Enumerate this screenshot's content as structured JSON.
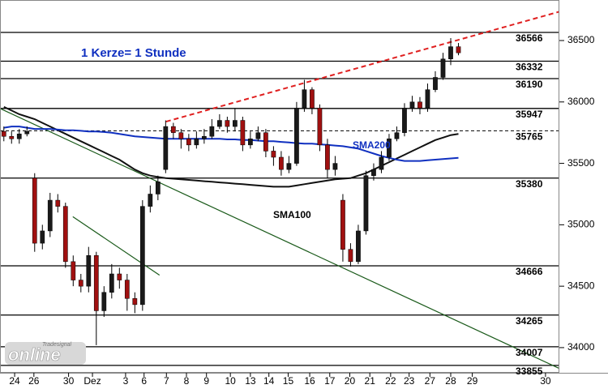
{
  "chart_data": {
    "type": "candlestick",
    "annotations": {
      "candle_note": "1 Kerze= 1 Stunde",
      "sma200_label": "SMA200",
      "sma100_label": "SMA100"
    },
    "logo": {
      "small": "Tradesignal",
      "main": "online"
    },
    "ylim": [
      33795,
      36830
    ],
    "yticks": [
      34000,
      34500,
      35000,
      35500,
      36000,
      36500
    ],
    "xlim": [
      -0.5,
      72.1
    ],
    "xticks": [
      {
        "value": 1.4,
        "label": "24"
      },
      {
        "value": 3.9,
        "label": "26"
      },
      {
        "value": 8.4,
        "label": "30"
      },
      {
        "value": 11.5,
        "label": "Dez"
      },
      {
        "value": 15.8,
        "label": "3"
      },
      {
        "value": 18.2,
        "label": "6"
      },
      {
        "value": 21.1,
        "label": "7"
      },
      {
        "value": 23.7,
        "label": "8"
      },
      {
        "value": 26.3,
        "label": "9"
      },
      {
        "value": 29.4,
        "label": "10"
      },
      {
        "value": 32,
        "label": "13"
      },
      {
        "value": 34.4,
        "label": "14"
      },
      {
        "value": 36.9,
        "label": "15"
      },
      {
        "value": 39.7,
        "label": "16"
      },
      {
        "value": 42.3,
        "label": "17"
      },
      {
        "value": 44.9,
        "label": "20"
      },
      {
        "value": 47.5,
        "label": "21"
      },
      {
        "value": 50.2,
        "label": "22"
      },
      {
        "value": 52.6,
        "label": "23"
      },
      {
        "value": 55.3,
        "label": "27"
      },
      {
        "value": 58,
        "label": "28"
      },
      {
        "value": 60.8,
        "label": "29"
      },
      {
        "value": 70.3,
        "label": "30"
      }
    ],
    "levels": [
      {
        "value": 36566,
        "label": "36566"
      },
      {
        "value": 36332,
        "label": "36332"
      },
      {
        "value": 36190,
        "label": "36190"
      },
      {
        "value": 35947,
        "label": "35947"
      },
      {
        "value": 35765,
        "label": "35765",
        "dashed": true
      },
      {
        "value": 35380,
        "label": "35380"
      },
      {
        "value": 34666,
        "label": "34666"
      },
      {
        "value": 34265,
        "label": "34265"
      },
      {
        "value": 34007,
        "label": "34007"
      },
      {
        "value": 33855,
        "label": "33855"
      }
    ],
    "candles": {
      "up_color": "#1a1a1a",
      "down_color": "#a01010",
      "open": [
        35760,
        35720,
        35700,
        35740,
        35380,
        34850,
        34950,
        35200,
        35150,
        34700,
        34550,
        34500,
        34750,
        34300,
        34450,
        34600,
        34550,
        34400,
        34350,
        35150,
        35250,
        35450,
        35800,
        35750,
        35700,
        35650,
        35700,
        35720,
        35800,
        35850,
        35800,
        35850,
        35650,
        35700,
        35750,
        35600,
        35550,
        35450,
        35500,
        35950,
        36100,
        35950,
        35650,
        35450,
        35200,
        34800,
        34700,
        34950,
        35400,
        35450,
        35550,
        35700,
        35750,
        35950,
        36000,
        35950,
        36100,
        36200,
        36350,
        36450
      ],
      "high": [
        35800,
        35760,
        35780,
        35800,
        35420,
        35000,
        35260,
        35250,
        35180,
        34750,
        34600,
        34820,
        34780,
        34500,
        34680,
        34650,
        34600,
        34450,
        35200,
        35320,
        35400,
        35850,
        35830,
        35780,
        35740,
        35760,
        35780,
        35860,
        35900,
        35880,
        35950,
        35880,
        35760,
        35800,
        35780,
        35640,
        35600,
        35560,
        36000,
        36180,
        36120,
        35980,
        35700,
        35560,
        35250,
        34850,
        35000,
        35440,
        35500,
        35600,
        35740,
        35800,
        35990,
        36050,
        36040,
        36150,
        36250,
        36400,
        36520,
        36480
      ],
      "low": [
        35680,
        35660,
        35660,
        35720,
        34780,
        34800,
        34900,
        35100,
        34650,
        34500,
        34450,
        34450,
        34020,
        34250,
        34400,
        34480,
        34300,
        34280,
        34300,
        35100,
        35200,
        35420,
        35700,
        35620,
        35600,
        35620,
        35660,
        35700,
        35780,
        35750,
        35760,
        35600,
        35620,
        35680,
        35550,
        35480,
        35400,
        35420,
        35480,
        35920,
        35900,
        35600,
        35380,
        35400,
        34700,
        34660,
        34680,
        34920,
        35360,
        35420,
        35520,
        35680,
        35720,
        35920,
        35900,
        35920,
        36080,
        36180,
        36300,
        36380
      ],
      "close": [
        35720,
        35700,
        35740,
        35760,
        34850,
        34950,
        35200,
        35150,
        34700,
        34550,
        34500,
        34750,
        34300,
        34450,
        34600,
        34550,
        34400,
        34350,
        35150,
        35250,
        35350,
        35800,
        35750,
        35700,
        35650,
        35700,
        35720,
        35800,
        35850,
        35800,
        35850,
        35650,
        35700,
        35750,
        35600,
        35550,
        35450,
        35500,
        35950,
        36100,
        35950,
        35650,
        35450,
        35500,
        34800,
        34700,
        34950,
        35400,
        35450,
        35550,
        35700,
        35750,
        35950,
        36000,
        35950,
        36100,
        36200,
        36350,
        36450,
        36400
      ]
    },
    "series": [
      {
        "name": "SMA100",
        "color": "#111111",
        "values": [
          35960,
          35930,
          35900,
          35880,
          35860,
          35830,
          35800,
          35770,
          35740,
          35710,
          35680,
          35650,
          35620,
          35590,
          35560,
          35530,
          35490,
          35450,
          35420,
          35400,
          35390,
          35380,
          35375,
          35370,
          35365,
          35360,
          35355,
          35350,
          35345,
          35340,
          35335,
          35330,
          35325,
          35320,
          35315,
          35310,
          35310,
          35310,
          35320,
          35330,
          35340,
          35350,
          35360,
          35370,
          35375,
          35380,
          35400,
          35420,
          35450,
          35480,
          35510,
          35540,
          35570,
          35600,
          35630,
          35660,
          35690,
          35710,
          35730,
          35740
        ]
      },
      {
        "name": "SMA200",
        "color": "#1030c0",
        "values": [
          35790,
          35800,
          35800,
          35790,
          35780,
          35780,
          35780,
          35775,
          35770,
          35770,
          35765,
          35760,
          35760,
          35755,
          35750,
          35740,
          35730,
          35720,
          35715,
          35710,
          35705,
          35700,
          35700,
          35700,
          35700,
          35700,
          35700,
          35700,
          35700,
          35695,
          35695,
          35690,
          35690,
          35685,
          35680,
          35680,
          35675,
          35670,
          35665,
          35660,
          35660,
          35655,
          35650,
          35645,
          35640,
          35630,
          35620,
          35600,
          35580,
          35560,
          35545,
          35530,
          35520,
          35520,
          35520,
          35525,
          35530,
          35535,
          35540,
          35545
        ]
      }
    ],
    "trendlines": [
      {
        "color": "#e02020",
        "dashed": true,
        "x": [
          21.05,
          72.1
        ],
        "values": [
          35840,
          36735
        ]
      },
      {
        "color": "#1a5a1a",
        "dashed": false,
        "x": [
          -0.5,
          72.1
        ],
        "values": [
          35947,
          33830
        ]
      },
      {
        "color": "#1a5a1a",
        "dashed": false,
        "x": [
          8.95,
          20.2
        ],
        "values": [
          35066,
          34590
        ]
      }
    ]
  }
}
